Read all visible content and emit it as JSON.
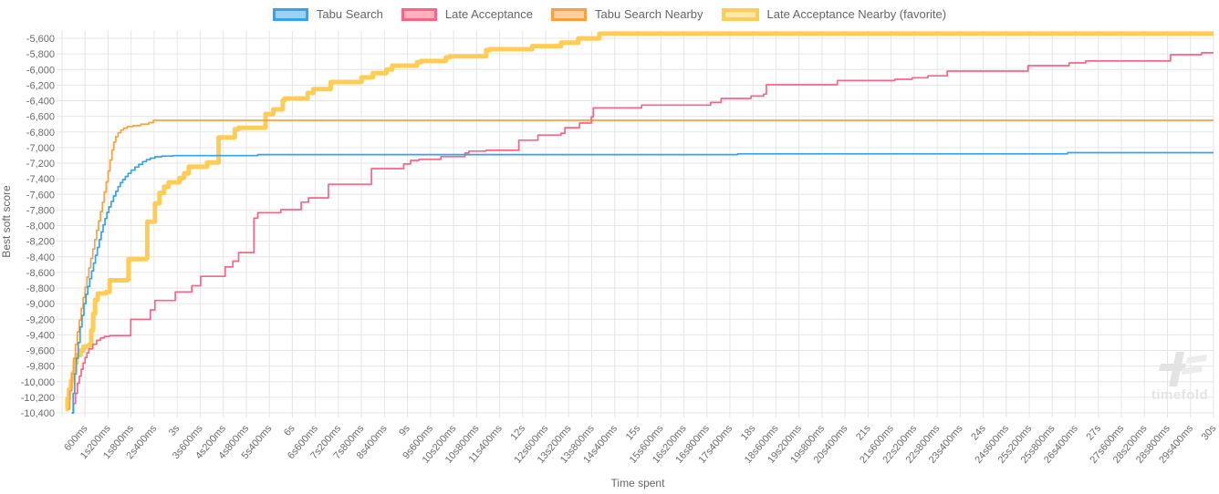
{
  "legend": {
    "items": [
      {
        "label": "Tabu Search",
        "color": "#36a2eb",
        "fill": "#9bd1f5",
        "favorite": false
      },
      {
        "label": "Late Acceptance",
        "color": "#ff6384",
        "fill": "#ffb1c2",
        "favorite": false
      },
      {
        "label": "Tabu Search Nearby",
        "color": "#ff9f40",
        "fill": "#ffcf9f",
        "favorite": false
      },
      {
        "label": "Late Acceptance Nearby (favorite)",
        "color": "#ffcd56",
        "fill": "#ffe6aa",
        "favorite": true
      }
    ]
  },
  "chart_data": {
    "type": "line",
    "step": true,
    "title": "",
    "xlabel": "Time spent",
    "ylabel": "Best soft score",
    "grid": true,
    "legend_position": "top",
    "x_axis": {
      "unit": "ms",
      "min": 0,
      "max": 30000,
      "tick_interval_ms": 600,
      "tick_labels": [
        "600ms",
        "1s200ms",
        "1s800ms",
        "2s400ms",
        "3s",
        "3s600ms",
        "4s200ms",
        "4s800ms",
        "5s400ms",
        "6s",
        "6s600ms",
        "7s200ms",
        "7s800ms",
        "8s400ms",
        "9s",
        "9s600ms",
        "10s200ms",
        "10s800ms",
        "11s400ms",
        "12s",
        "12s600ms",
        "13s200ms",
        "13s800ms",
        "14s400ms",
        "15s",
        "15s600ms",
        "16s200ms",
        "16s800ms",
        "17s400ms",
        "18s",
        "18s600ms",
        "19s200ms",
        "19s800ms",
        "20s400ms",
        "21s",
        "21s600ms",
        "22s200ms",
        "22s800ms",
        "23s400ms",
        "24s",
        "24s600ms",
        "25s200ms",
        "25s800ms",
        "26s400ms",
        "27s",
        "27s600ms",
        "28s200ms",
        "28s800ms",
        "29s400ms",
        "30s"
      ]
    },
    "y_axis": {
      "min": -10400,
      "max": -5500,
      "tick_interval": 200,
      "tick_values": [
        -5600,
        -5800,
        -6000,
        -6200,
        -6400,
        -6600,
        -6800,
        -7000,
        -7200,
        -7400,
        -7600,
        -7800,
        -8000,
        -8200,
        -8400,
        -8600,
        -8800,
        -9000,
        -9200,
        -9400,
        -9600,
        -9800,
        -10000,
        -10200,
        -10400
      ],
      "tick_labels": [
        "-5,600",
        "-5,800",
        "-6,000",
        "-6,200",
        "-6,400",
        "-6,600",
        "-6,800",
        "-7,000",
        "-7,200",
        "-7,400",
        "-7,600",
        "-7,800",
        "-8,000",
        "-8,200",
        "-8,400",
        "-8,600",
        "-8,800",
        "-9,000",
        "-9,200",
        "-9,400",
        "-9,600",
        "-9,800",
        "-10,000",
        "-10,200",
        "-10,400"
      ]
    },
    "series": [
      {
        "name": "Tabu Search",
        "color": "#36a2eb",
        "width": 1.7,
        "favorite": false,
        "points": [
          [
            250,
            -10400
          ],
          [
            290,
            -10150
          ],
          [
            330,
            -9900
          ],
          [
            370,
            -9700
          ],
          [
            420,
            -9500
          ],
          [
            470,
            -9300
          ],
          [
            520,
            -9150
          ],
          [
            570,
            -9000
          ],
          [
            620,
            -8880
          ],
          [
            670,
            -8780
          ],
          [
            720,
            -8680
          ],
          [
            770,
            -8580
          ],
          [
            820,
            -8480
          ],
          [
            870,
            -8380
          ],
          [
            920,
            -8280
          ],
          [
            970,
            -8180
          ],
          [
            1020,
            -8080
          ],
          [
            1070,
            -7990
          ],
          [
            1120,
            -7910
          ],
          [
            1170,
            -7830
          ],
          [
            1220,
            -7760
          ],
          [
            1280,
            -7690
          ],
          [
            1340,
            -7620
          ],
          [
            1400,
            -7560
          ],
          [
            1460,
            -7500
          ],
          [
            1520,
            -7450
          ],
          [
            1580,
            -7410
          ],
          [
            1650,
            -7370
          ],
          [
            1720,
            -7330
          ],
          [
            1800,
            -7290
          ],
          [
            1900,
            -7250
          ],
          [
            2000,
            -7215
          ],
          [
            2100,
            -7180
          ],
          [
            2200,
            -7155
          ],
          [
            2300,
            -7135
          ],
          [
            2420,
            -7118
          ],
          [
            2600,
            -7108
          ],
          [
            2900,
            -7102
          ],
          [
            5100,
            -7090
          ],
          [
            17600,
            -7080
          ],
          [
            26200,
            -7065
          ],
          [
            30000,
            -7065
          ]
        ]
      },
      {
        "name": "Late Acceptance",
        "color": "#ff6384",
        "width": 1.7,
        "favorite": false,
        "points": [
          [
            250,
            -10400
          ],
          [
            300,
            -10280
          ],
          [
            350,
            -10150
          ],
          [
            400,
            -10020
          ],
          [
            450,
            -9930
          ],
          [
            500,
            -9840
          ],
          [
            550,
            -9760
          ],
          [
            600,
            -9690
          ],
          [
            650,
            -9630
          ],
          [
            700,
            -9580
          ],
          [
            800,
            -9520
          ],
          [
            900,
            -9470
          ],
          [
            1000,
            -9440
          ],
          [
            1100,
            -9420
          ],
          [
            1240,
            -9410
          ],
          [
            1790,
            -9200
          ],
          [
            2300,
            -9080
          ],
          [
            2420,
            -8960
          ],
          [
            2950,
            -8850
          ],
          [
            3380,
            -8770
          ],
          [
            3610,
            -8650
          ],
          [
            4250,
            -8530
          ],
          [
            4450,
            -8455
          ],
          [
            4600,
            -8345
          ],
          [
            5000,
            -7905
          ],
          [
            5100,
            -7835
          ],
          [
            5700,
            -7795
          ],
          [
            6230,
            -7700
          ],
          [
            6420,
            -7645
          ],
          [
            6940,
            -7470
          ],
          [
            8060,
            -7270
          ],
          [
            8900,
            -7210
          ],
          [
            9080,
            -7165
          ],
          [
            9300,
            -7150
          ],
          [
            9870,
            -7115
          ],
          [
            10500,
            -7070
          ],
          [
            10600,
            -7045
          ],
          [
            11050,
            -7035
          ],
          [
            11900,
            -6905
          ],
          [
            12400,
            -6840
          ],
          [
            13000,
            -6815
          ],
          [
            13100,
            -6745
          ],
          [
            13480,
            -6685
          ],
          [
            13790,
            -6605
          ],
          [
            13840,
            -6490
          ],
          [
            15100,
            -6455
          ],
          [
            16900,
            -6420
          ],
          [
            17170,
            -6370
          ],
          [
            17950,
            -6340
          ],
          [
            18280,
            -6315
          ],
          [
            18350,
            -6195
          ],
          [
            20200,
            -6140
          ],
          [
            21700,
            -6125
          ],
          [
            22150,
            -6105
          ],
          [
            22560,
            -6080
          ],
          [
            23060,
            -6020
          ],
          [
            25170,
            -5950
          ],
          [
            26240,
            -5915
          ],
          [
            26670,
            -5890
          ],
          [
            28880,
            -5810
          ],
          [
            29690,
            -5785
          ],
          [
            30000,
            -5785
          ]
        ]
      },
      {
        "name": "Tabu Search Nearby",
        "color": "#ff9f40",
        "width": 1.7,
        "favorite": false,
        "points": [
          [
            150,
            -10350
          ],
          [
            200,
            -10120
          ],
          [
            250,
            -9900
          ],
          [
            300,
            -9700
          ],
          [
            350,
            -9520
          ],
          [
            400,
            -9360
          ],
          [
            450,
            -9210
          ],
          [
            500,
            -9060
          ],
          [
            550,
            -8920
          ],
          [
            600,
            -8790
          ],
          [
            650,
            -8660
          ],
          [
            700,
            -8540
          ],
          [
            750,
            -8420
          ],
          [
            800,
            -8300
          ],
          [
            850,
            -8180
          ],
          [
            900,
            -8060
          ],
          [
            950,
            -7940
          ],
          [
            1000,
            -7820
          ],
          [
            1050,
            -7700
          ],
          [
            1100,
            -7570
          ],
          [
            1150,
            -7440
          ],
          [
            1200,
            -7300
          ],
          [
            1250,
            -7160
          ],
          [
            1300,
            -7030
          ],
          [
            1350,
            -6930
          ],
          [
            1400,
            -6860
          ],
          [
            1460,
            -6810
          ],
          [
            1530,
            -6775
          ],
          [
            1600,
            -6750
          ],
          [
            1700,
            -6730
          ],
          [
            1850,
            -6720
          ],
          [
            2050,
            -6700
          ],
          [
            2260,
            -6680
          ],
          [
            2380,
            -6650
          ],
          [
            30000,
            -6650
          ]
        ]
      },
      {
        "name": "Late Acceptance Nearby (favorite)",
        "color": "#ffcd56",
        "width": 5,
        "favorite": true,
        "points": [
          [
            100,
            -10350
          ],
          [
            140,
            -10220
          ],
          [
            180,
            -10100
          ],
          [
            230,
            -9990
          ],
          [
            280,
            -9890
          ],
          [
            330,
            -9760
          ],
          [
            380,
            -9660
          ],
          [
            480,
            -9600
          ],
          [
            560,
            -9550
          ],
          [
            700,
            -9530
          ],
          [
            760,
            -9340
          ],
          [
            810,
            -9130
          ],
          [
            860,
            -8950
          ],
          [
            930,
            -8870
          ],
          [
            1150,
            -8850
          ],
          [
            1240,
            -8700
          ],
          [
            1700,
            -8690
          ],
          [
            1730,
            -8430
          ],
          [
            2190,
            -8420
          ],
          [
            2220,
            -7950
          ],
          [
            2420,
            -7715
          ],
          [
            2540,
            -7580
          ],
          [
            2660,
            -7500
          ],
          [
            2780,
            -7445
          ],
          [
            3060,
            -7390
          ],
          [
            3180,
            -7330
          ],
          [
            3300,
            -7245
          ],
          [
            3780,
            -7190
          ],
          [
            4080,
            -6870
          ],
          [
            4500,
            -6765
          ],
          [
            4600,
            -6745
          ],
          [
            5300,
            -6570
          ],
          [
            5500,
            -6510
          ],
          [
            5750,
            -6395
          ],
          [
            5800,
            -6370
          ],
          [
            6400,
            -6300
          ],
          [
            6550,
            -6250
          ],
          [
            7000,
            -6160
          ],
          [
            7800,
            -6100
          ],
          [
            8100,
            -6045
          ],
          [
            8450,
            -6000
          ],
          [
            8600,
            -5950
          ],
          [
            9250,
            -5905
          ],
          [
            9350,
            -5890
          ],
          [
            10000,
            -5845
          ],
          [
            10100,
            -5830
          ],
          [
            11050,
            -5750
          ],
          [
            11150,
            -5740
          ],
          [
            12250,
            -5700
          ],
          [
            13000,
            -5655
          ],
          [
            13450,
            -5600
          ],
          [
            14000,
            -5540
          ],
          [
            30000,
            -5540
          ]
        ]
      }
    ]
  },
  "watermark": {
    "text": "timefold"
  }
}
